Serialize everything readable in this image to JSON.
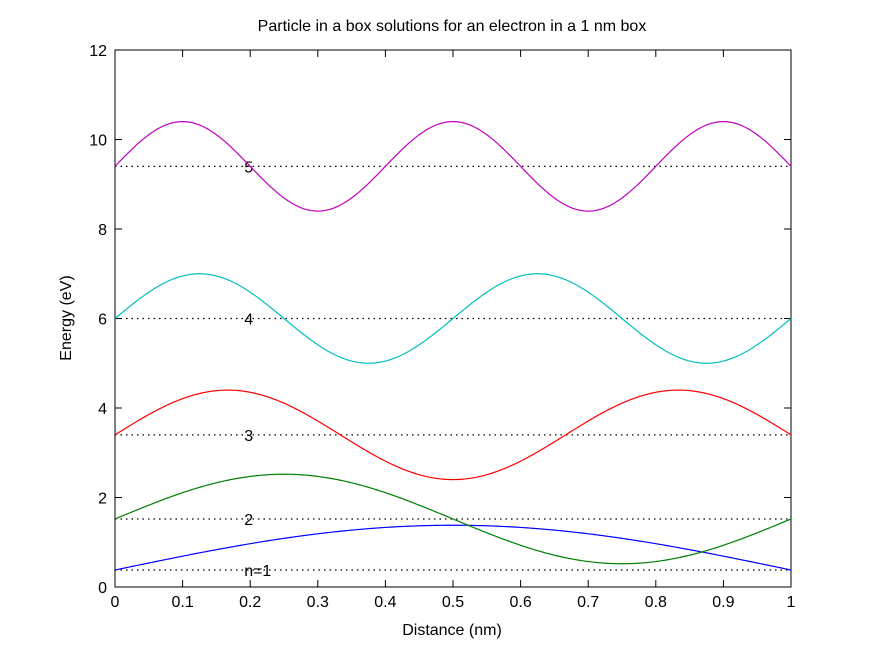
{
  "chart_data": {
    "type": "line",
    "title": "Particle in a box solutions for an electron in a 1 nm box",
    "xlabel": "Distance (nm)",
    "ylabel": "Energy (eV)",
    "xlim": [
      0,
      1
    ],
    "ylim": [
      0,
      12
    ],
    "x_ticks": [
      0,
      0.1,
      0.2,
      0.3,
      0.4,
      0.5,
      0.6,
      0.7,
      0.8,
      0.9,
      1
    ],
    "x_tick_labels": [
      "0",
      "0.1",
      "0.2",
      "0.3",
      "0.4",
      "0.5",
      "0.6",
      "0.7",
      "0.8",
      "0.9",
      "1"
    ],
    "y_ticks": [
      0,
      2,
      4,
      6,
      8,
      10,
      12
    ],
    "y_tick_labels": [
      "0",
      "2",
      "4",
      "6",
      "8",
      "10",
      "12"
    ],
    "grid": false,
    "legend": "none",
    "levels": [
      {
        "n": 1,
        "label": "n=1",
        "energy": 0.38,
        "label_x": 0.2
      },
      {
        "n": 2,
        "label": "2",
        "energy": 1.52,
        "label_x": 0.2
      },
      {
        "n": 3,
        "label": "3",
        "energy": 3.4,
        "label_x": 0.2
      },
      {
        "n": 4,
        "label": "4",
        "energy": 6.0,
        "label_x": 0.2
      },
      {
        "n": 5,
        "label": "5",
        "energy": 9.4,
        "label_x": 0.2
      }
    ],
    "series": [
      {
        "n": 1,
        "color": "#0000ff",
        "baseline": 0.38,
        "amplitude": 1.0,
        "x": [
          0,
          0.1,
          0.2,
          0.3,
          0.4,
          0.5,
          0.6,
          0.7,
          0.8,
          0.9,
          1.0
        ],
        "y": [
          0.38,
          0.69,
          0.97,
          1.19,
          1.33,
          1.38,
          1.33,
          1.19,
          0.97,
          0.69,
          0.38
        ]
      },
      {
        "n": 2,
        "color": "#007f00",
        "baseline": 1.52,
        "amplitude": 1.0,
        "x": [
          0,
          0.125,
          0.25,
          0.375,
          0.5,
          0.625,
          0.75,
          0.875,
          1.0
        ],
        "y": [
          1.52,
          2.23,
          2.52,
          2.23,
          1.52,
          0.81,
          0.52,
          0.81,
          1.52
        ]
      },
      {
        "n": 3,
        "color": "#ff0000",
        "baseline": 3.4,
        "amplitude": 1.0,
        "x": [
          0,
          0.0833,
          0.1667,
          0.25,
          0.3333,
          0.4167,
          0.5,
          0.5833,
          0.6667,
          0.75,
          0.8333,
          0.9167,
          1.0
        ],
        "y": [
          3.4,
          4.11,
          4.4,
          4.11,
          3.4,
          2.69,
          2.4,
          2.69,
          3.4,
          4.11,
          4.4,
          4.11,
          3.4
        ]
      },
      {
        "n": 4,
        "color": "#00bfbf",
        "baseline": 6.0,
        "amplitude": 1.0,
        "x": [
          0,
          0.125,
          0.25,
          0.375,
          0.5,
          0.625,
          0.75,
          0.875,
          1.0
        ],
        "y": [
          6.0,
          7.0,
          6.0,
          5.0,
          6.0,
          7.0,
          6.0,
          5.0,
          6.0
        ]
      },
      {
        "n": 5,
        "color": "#bf00bf",
        "baseline": 9.4,
        "amplitude": 1.0,
        "x": [
          0,
          0.1,
          0.2,
          0.3,
          0.4,
          0.5,
          0.6,
          0.7,
          0.8,
          0.9,
          1.0
        ],
        "y": [
          9.4,
          10.4,
          9.4,
          8.4,
          9.4,
          10.4,
          9.4,
          8.4,
          9.4,
          10.4,
          9.4
        ]
      }
    ]
  }
}
